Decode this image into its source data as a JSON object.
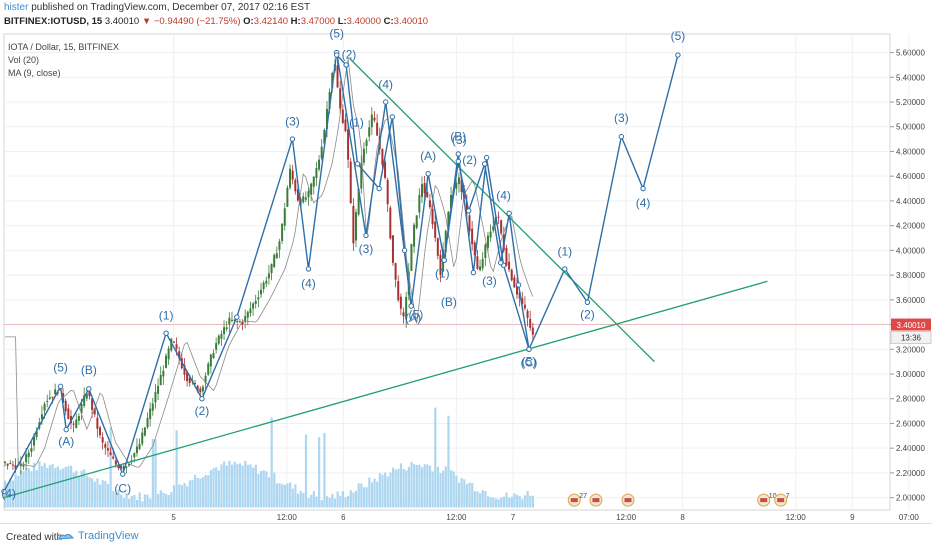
{
  "header": {
    "author": "hister",
    "published": "published on TradingView.com, December 07, 2017 02:16 EST"
  },
  "symbol_bar": {
    "symbol": "BITFINEX:IOTUSD, 15",
    "last": "3.40010",
    "change": "▼ −0.94490 (−21.75%)",
    "o_label": "O:",
    "o": "3.42140",
    "h_label": "H:",
    "h": "3.47000",
    "l_label": "L:",
    "l": "3.40000",
    "c_label": "C:",
    "c": "3.40010"
  },
  "legend": [
    "IOTA / Dollar, 15, BITFINEX",
    "Vol (20)",
    "MA (9, close)"
  ],
  "footer": {
    "created_with": "Created with",
    "brand": "TradingView"
  },
  "colors": {
    "wave": "#2f6fa8",
    "trend": "#1f9e6e",
    "up": "#3a7d3a",
    "down": "#a83232",
    "volume": "#9fd0ee",
    "price_tag": "#e04848"
  },
  "chart_data": {
    "type": "candlestick",
    "y_axis": {
      "ticks": [
        "5.60000",
        "5.40000",
        "5.20000",
        "5.00000",
        "4.80000",
        "4.60000",
        "4.40000",
        "4.20000",
        "4.00000",
        "3.80000",
        "3.60000",
        "3.40000",
        "3.20000",
        "3.00000",
        "2.80000",
        "2.60000",
        "2.40000",
        "2.20000",
        "2.00000"
      ],
      "range": [
        1.9,
        5.75
      ]
    },
    "x_axis": {
      "ticks": [
        "5",
        "12:00",
        "6",
        "12:00",
        "7",
        "12:00",
        "8",
        "12:00",
        "9",
        "07:00"
      ],
      "range": [
        0,
        94
      ]
    },
    "x_tick_positions": [
      18,
      30,
      36,
      48,
      54,
      66,
      72,
      84,
      90,
      96
    ],
    "last_price": {
      "value": "3.40010",
      "countdown": "13:36"
    },
    "price_path": [
      [
        0,
        2.28
      ],
      [
        2,
        2.25
      ],
      [
        3,
        2.4
      ],
      [
        4.5,
        2.78
      ],
      [
        6,
        2.88
      ],
      [
        7.5,
        2.55
      ],
      [
        9,
        2.87
      ],
      [
        10.5,
        2.45
      ],
      [
        12,
        2.27
      ],
      [
        13,
        2.24
      ],
      [
        14.5,
        2.42
      ],
      [
        16,
        2.78
      ],
      [
        18,
        3.28
      ],
      [
        19.5,
        2.98
      ],
      [
        21,
        2.86
      ],
      [
        22.5,
        3.22
      ],
      [
        24,
        3.43
      ],
      [
        25.5,
        3.42
      ],
      [
        27,
        3.62
      ],
      [
        28.5,
        3.85
      ],
      [
        29.5,
        4.1
      ],
      [
        30.5,
        4.65
      ],
      [
        31.5,
        4.38
      ],
      [
        32.5,
        4.45
      ],
      [
        33.5,
        4.7
      ],
      [
        34.2,
        5.0
      ],
      [
        34.7,
        5.3
      ],
      [
        35.2,
        5.55
      ],
      [
        35.8,
        5.15
      ],
      [
        36.5,
        4.95
      ],
      [
        37.2,
        4.05
      ],
      [
        38.2,
        4.8
      ],
      [
        39.3,
        5.1
      ],
      [
        40.5,
        4.65
      ],
      [
        41.5,
        3.85
      ],
      [
        42.5,
        3.4
      ],
      [
        43.5,
        4.1
      ],
      [
        44.5,
        4.55
      ],
      [
        45.5,
        4.3
      ],
      [
        46.5,
        3.82
      ],
      [
        47.5,
        4.45
      ],
      [
        48.5,
        4.58
      ],
      [
        49.5,
        4.2
      ],
      [
        50.5,
        3.8
      ],
      [
        51.5,
        4.1
      ],
      [
        52.5,
        4.3
      ],
      [
        53.5,
        3.9
      ],
      [
        54.5,
        3.68
      ],
      [
        55.5,
        3.5
      ],
      [
        56.3,
        3.3
      ]
    ],
    "wave_segments": [
      [
        [
          0,
          2.05
        ],
        [
          6,
          2.9
        ],
        [
          6.6,
          2.55
        ],
        [
          9,
          2.88
        ],
        [
          12.6,
          2.19
        ],
        [
          17.2,
          3.33
        ],
        [
          21,
          2.8
        ],
        [
          24.7,
          3.46
        ],
        [
          30.6,
          4.9
        ],
        [
          32.3,
          3.85
        ],
        [
          35.3,
          5.6
        ],
        [
          38.4,
          4.12
        ],
        [
          40.5,
          5.2
        ],
        [
          43.2,
          3.55
        ],
        [
          45,
          4.62
        ],
        [
          46.7,
          3.92
        ],
        [
          48.2,
          4.78
        ],
        [
          49.8,
          3.82
        ],
        [
          51.2,
          4.75
        ],
        [
          53,
          3.88
        ],
        [
          55.7,
          3.2
        ],
        [
          59.5,
          3.85
        ],
        [
          61.9,
          3.58
        ],
        [
          65.5,
          4.92
        ],
        [
          67.8,
          4.5
        ],
        [
          71.5,
          5.58
        ]
      ],
      [
        [
          35.3,
          5.58
        ],
        [
          36.3,
          5.5
        ],
        [
          37.5,
          4.7
        ],
        [
          39.8,
          4.5
        ],
        [
          41.2,
          5.08
        ],
        [
          42.5,
          4.0
        ],
        [
          43.2,
          3.55
        ]
      ],
      [
        [
          46.7,
          3.92
        ],
        [
          48.2,
          4.72
        ],
        [
          49.3,
          4.32
        ],
        [
          51,
          4.7
        ],
        [
          52.7,
          3.9
        ],
        [
          53.6,
          4.3
        ],
        [
          54.6,
          3.72
        ],
        [
          55.7,
          3.2
        ]
      ]
    ],
    "trendlines": [
      {
        "from": [
          0,
          2.0
        ],
        "to": [
          81,
          3.75
        ]
      },
      {
        "from": [
          36.7,
          5.55
        ],
        "to": [
          69,
          3.1
        ]
      }
    ],
    "wave_labels": [
      {
        "text": "(4)",
        "x": 0.5,
        "y": 2.0
      },
      {
        "text": "(5)",
        "x": 6,
        "y": 3.02
      },
      {
        "text": "(A)",
        "x": 6.6,
        "y": 2.42
      },
      {
        "text": "(B)",
        "x": 9,
        "y": 3.0
      },
      {
        "text": "(C)",
        "x": 12.6,
        "y": 2.04
      },
      {
        "text": "(1)",
        "x": 17.2,
        "y": 3.44
      },
      {
        "text": "(2)",
        "x": 21,
        "y": 2.67
      },
      {
        "text": "(3)",
        "x": 30.6,
        "y": 5.01
      },
      {
        "text": "(4)",
        "x": 32.3,
        "y": 3.7
      },
      {
        "text": "(5)",
        "x": 35.3,
        "y": 5.72
      },
      {
        "text": "(2)",
        "x": 36.6,
        "y": 5.55
      },
      {
        "text": "(1)",
        "x": 37.4,
        "y": 5.0
      },
      {
        "text": "(3)",
        "x": 38.4,
        "y": 3.98
      },
      {
        "text": "(4)",
        "x": 40.5,
        "y": 5.31
      },
      {
        "text": "(A)",
        "x": 43.4,
        "y": 3.42
      },
      {
        "text": "(5)",
        "x": 43.7,
        "y": 3.45
      },
      {
        "text": "(A)",
        "x": 45,
        "y": 4.73
      },
      {
        "text": "(1)",
        "x": 46.5,
        "y": 3.78
      },
      {
        "text": "(B)",
        "x": 48.2,
        "y": 4.89
      },
      {
        "text": "(3)",
        "x": 48.3,
        "y": 4.86
      },
      {
        "text": "(2)",
        "x": 49.4,
        "y": 4.7
      },
      {
        "text": "(B)",
        "x": 47.2,
        "y": 3.55
      },
      {
        "text": "(3)",
        "x": 51.5,
        "y": 3.72
      },
      {
        "text": "(4)",
        "x": 53,
        "y": 4.41
      },
      {
        "text": "(C)",
        "x": 55.7,
        "y": 3.06
      },
      {
        "text": "(5)",
        "x": 55.7,
        "y": 3.07
      },
      {
        "text": "(1)",
        "x": 59.5,
        "y": 3.96
      },
      {
        "text": "(2)",
        "x": 61.9,
        "y": 3.45
      },
      {
        "text": "(3)",
        "x": 65.5,
        "y": 5.04
      },
      {
        "text": "(4)",
        "x": 67.8,
        "y": 4.35
      },
      {
        "text": "(5)",
        "x": 71.5,
        "y": 5.7
      }
    ],
    "event_markers": [
      {
        "x": 60.5,
        "label": "27"
      },
      {
        "x": 62.8,
        "label": ""
      },
      {
        "x": 66.2,
        "label": ""
      },
      {
        "x": 80.6,
        "label": "10"
      },
      {
        "x": 82.4,
        "label": "7"
      }
    ]
  }
}
